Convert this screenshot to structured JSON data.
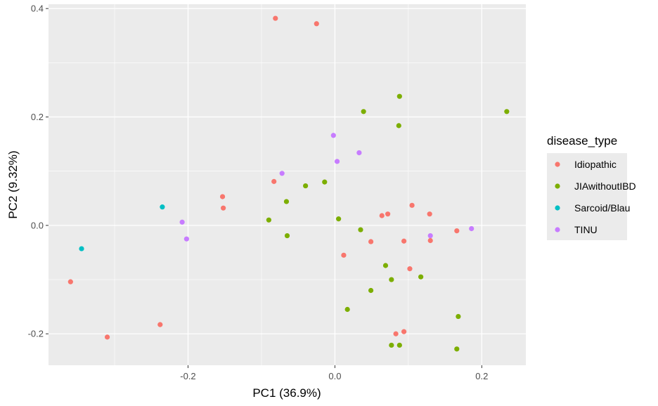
{
  "chart_data": {
    "type": "scatter",
    "title": "",
    "xlabel": "PC1 (36.9%)",
    "ylabel": "PC2 (9.32%)",
    "xlim": [
      -0.39,
      0.26
    ],
    "ylim": [
      -0.258,
      0.408
    ],
    "x_ticks": [
      -0.2,
      0.0,
      0.2
    ],
    "x_tick_labels": [
      "-0.2",
      "0.0",
      "0.2"
    ],
    "y_ticks": [
      -0.2,
      0.0,
      0.2,
      0.4
    ],
    "y_tick_labels": [
      "-0.2",
      "0.0",
      "0.2",
      "0.4"
    ],
    "grid": true,
    "legend_title": "disease_type",
    "legend_position": "right",
    "series": [
      {
        "name": "Idiopathic",
        "color": "#F8766D",
        "points": [
          {
            "x": -0.081,
            "y": 0.382
          },
          {
            "x": -0.025,
            "y": 0.372
          },
          {
            "x": -0.083,
            "y": 0.081
          },
          {
            "x": -0.153,
            "y": 0.053
          },
          {
            "x": -0.152,
            "y": 0.032
          },
          {
            "x": 0.105,
            "y": 0.037
          },
          {
            "x": 0.072,
            "y": 0.021
          },
          {
            "x": 0.064,
            "y": 0.018
          },
          {
            "x": 0.129,
            "y": 0.021
          },
          {
            "x": 0.166,
            "y": -0.01
          },
          {
            "x": 0.13,
            "y": -0.028
          },
          {
            "x": 0.094,
            "y": -0.029
          },
          {
            "x": 0.049,
            "y": -0.03
          },
          {
            "x": 0.012,
            "y": -0.055
          },
          {
            "x": 0.102,
            "y": -0.08
          },
          {
            "x": -0.36,
            "y": -0.104
          },
          {
            "x": -0.238,
            "y": -0.183
          },
          {
            "x": -0.31,
            "y": -0.206
          },
          {
            "x": 0.083,
            "y": -0.2
          },
          {
            "x": 0.094,
            "y": -0.196
          }
        ]
      },
      {
        "name": "JIAwithoutIBD",
        "color": "#7CAE00",
        "points": [
          {
            "x": 0.088,
            "y": 0.238
          },
          {
            "x": 0.039,
            "y": 0.21
          },
          {
            "x": 0.234,
            "y": 0.21
          },
          {
            "x": 0.087,
            "y": 0.184
          },
          {
            "x": -0.04,
            "y": 0.073
          },
          {
            "x": -0.014,
            "y": 0.08
          },
          {
            "x": -0.066,
            "y": 0.044
          },
          {
            "x": -0.09,
            "y": 0.01
          },
          {
            "x": 0.005,
            "y": 0.012
          },
          {
            "x": 0.035,
            "y": -0.008
          },
          {
            "x": -0.065,
            "y": -0.019
          },
          {
            "x": 0.069,
            "y": -0.074
          },
          {
            "x": 0.077,
            "y": -0.1
          },
          {
            "x": 0.117,
            "y": -0.095
          },
          {
            "x": 0.049,
            "y": -0.12
          },
          {
            "x": 0.017,
            "y": -0.155
          },
          {
            "x": 0.168,
            "y": -0.168
          },
          {
            "x": 0.077,
            "y": -0.221
          },
          {
            "x": 0.088,
            "y": -0.221
          },
          {
            "x": 0.166,
            "y": -0.228
          }
        ]
      },
      {
        "name": "Sarcoid/Blau",
        "color": "#00BFC4",
        "points": [
          {
            "x": -0.235,
            "y": 0.034
          },
          {
            "x": -0.345,
            "y": -0.043
          }
        ]
      },
      {
        "name": "TINU",
        "color": "#C77CFF",
        "points": [
          {
            "x": -0.002,
            "y": 0.166
          },
          {
            "x": 0.033,
            "y": 0.134
          },
          {
            "x": 0.003,
            "y": 0.118
          },
          {
            "x": -0.072,
            "y": 0.096
          },
          {
            "x": -0.208,
            "y": 0.006
          },
          {
            "x": -0.202,
            "y": -0.025
          },
          {
            "x": 0.13,
            "y": -0.019
          },
          {
            "x": 0.186,
            "y": -0.006
          }
        ]
      }
    ]
  }
}
